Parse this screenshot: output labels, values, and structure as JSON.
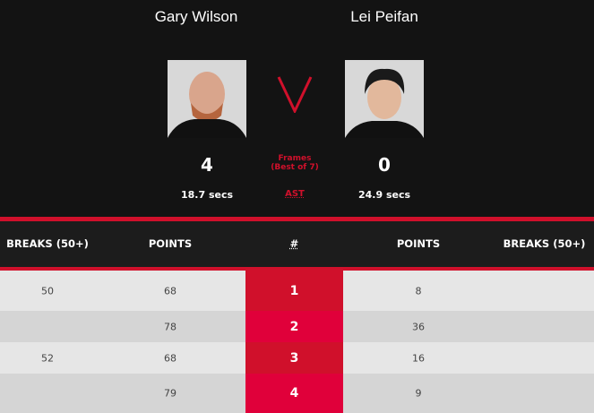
{
  "players": [
    {
      "name": "Gary Wilson",
      "score": "4",
      "shot_time": "18.7 secs"
    },
    {
      "name": "Lei Peifan",
      "score": "0",
      "shot_time": "24.9 secs"
    }
  ],
  "versus": "V",
  "frames_label": "Frames",
  "best_of": "(Best of 7)",
  "ast": "AST",
  "headers": {
    "breaks_left": "BREAKS (50+)",
    "points_left": "POINTS",
    "frame": "#",
    "points_right": "POINTS",
    "breaks_right": "BREAKS (50+)"
  },
  "rows": [
    {
      "breaks_left": "50",
      "points_left": "68",
      "frame": "1",
      "points_right": "8",
      "breaks_right": ""
    },
    {
      "breaks_left": "",
      "points_left": "78",
      "frame": "2",
      "points_right": "36",
      "breaks_right": ""
    },
    {
      "breaks_left": "52",
      "points_left": "68",
      "frame": "3",
      "points_right": "16",
      "breaks_right": ""
    },
    {
      "breaks_left": "",
      "points_left": "79",
      "frame": "4",
      "points_right": "9",
      "breaks_right": ""
    }
  ],
  "colors": {
    "accent": "#d0102b",
    "frame_alt": "#e0003a",
    "row_light": "#e6e6e6",
    "row_dark": "#d5d5d5"
  }
}
